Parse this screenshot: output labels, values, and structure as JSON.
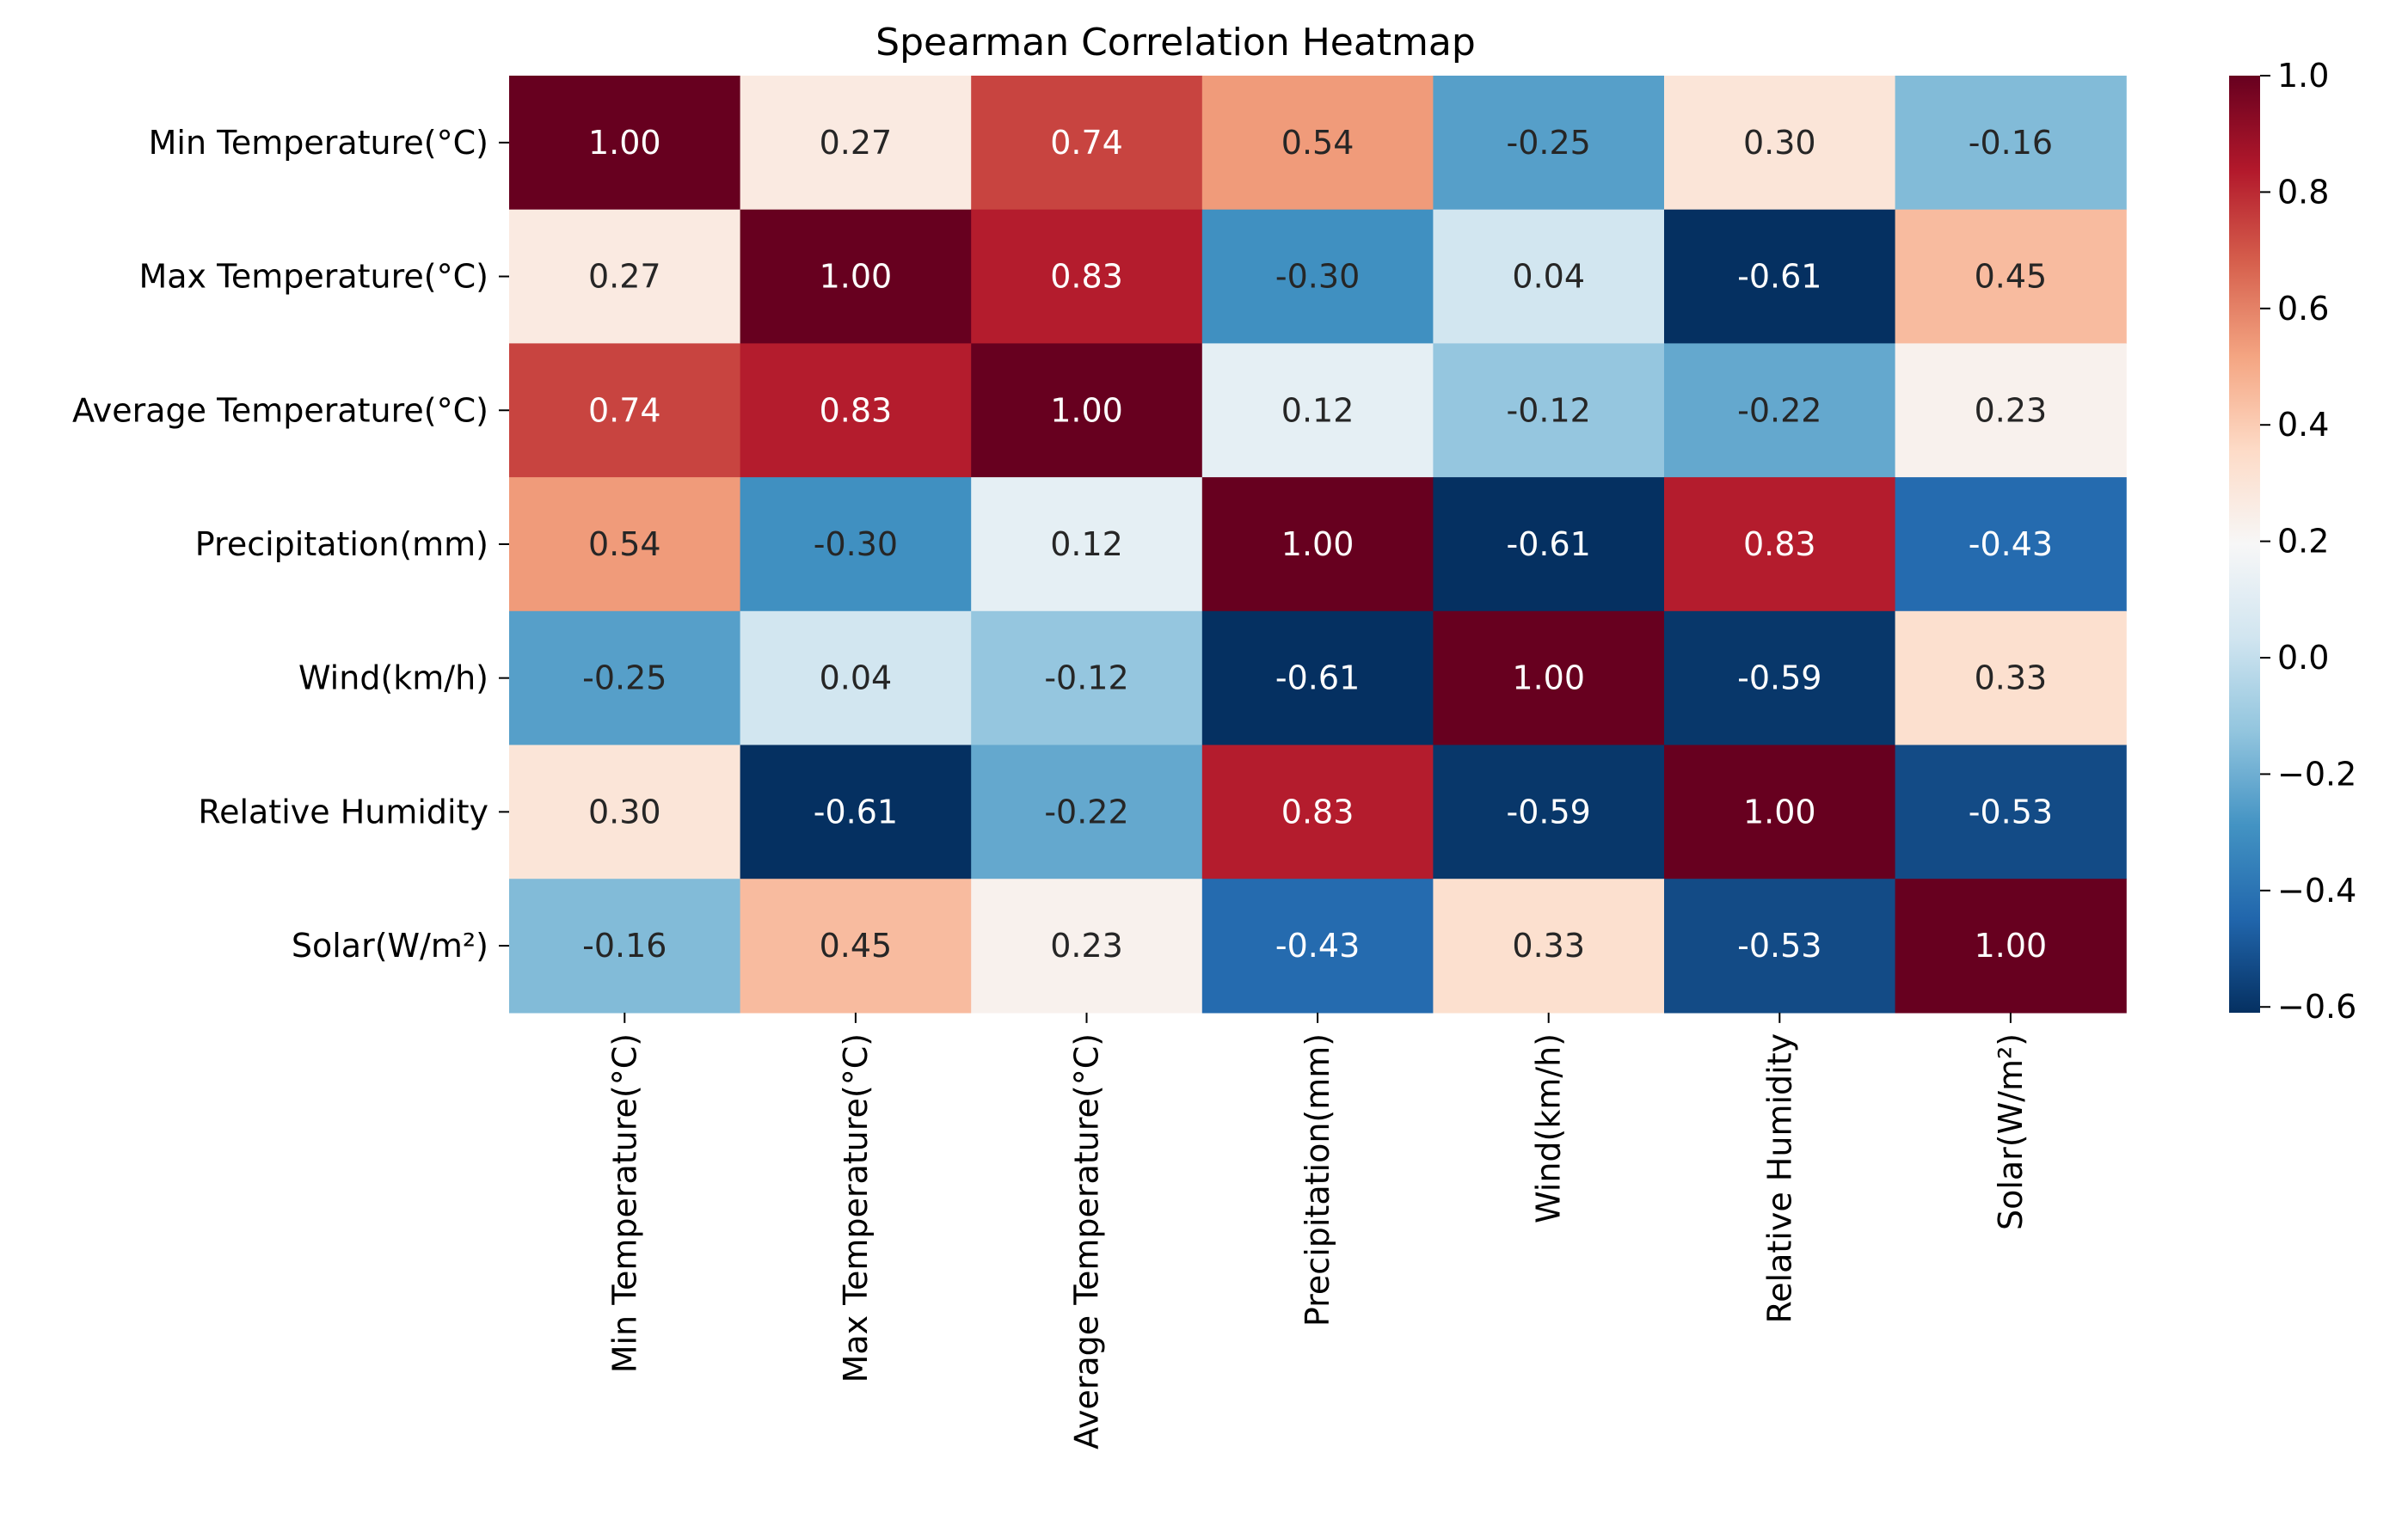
{
  "chart_data": {
    "type": "heatmap",
    "title": "Spearman Correlation Heatmap",
    "rows": [
      "Min Temperature(°C)",
      "Max Temperature(°C)",
      "Average Temperature(°C)",
      "Precipitation(mm)",
      "Wind(km/h)",
      "Relative Humidity",
      "Solar(W/m²)"
    ],
    "columns": [
      "Min Temperature(°C)",
      "Max Temperature(°C)",
      "Average Temperature(°C)",
      "Precipitation(mm)",
      "Wind(km/h)",
      "Relative Humidity",
      "Solar(W/m²)"
    ],
    "values": [
      [
        1.0,
        0.27,
        0.74,
        0.54,
        -0.25,
        0.3,
        -0.16
      ],
      [
        0.27,
        1.0,
        0.83,
        -0.3,
        0.04,
        -0.61,
        0.45
      ],
      [
        0.74,
        0.83,
        1.0,
        0.12,
        -0.12,
        -0.22,
        0.23
      ],
      [
        0.54,
        -0.3,
        0.12,
        1.0,
        -0.61,
        0.83,
        -0.43
      ],
      [
        -0.25,
        0.04,
        -0.12,
        -0.61,
        1.0,
        -0.59,
        0.33
      ],
      [
        0.3,
        -0.61,
        -0.22,
        0.83,
        -0.59,
        1.0,
        -0.53
      ],
      [
        -0.16,
        0.45,
        0.23,
        -0.43,
        0.33,
        -0.53,
        1.0
      ]
    ],
    "cell_labels": [
      [
        "1.00",
        "0.27",
        "0.74",
        "0.54",
        "-0.25",
        "0.30",
        "-0.16"
      ],
      [
        "0.27",
        "1.00",
        "0.83",
        "-0.30",
        "0.04",
        "-0.61",
        "0.45"
      ],
      [
        "0.74",
        "0.83",
        "1.00",
        "0.12",
        "-0.12",
        "-0.22",
        "0.23"
      ],
      [
        "0.54",
        "-0.30",
        "0.12",
        "1.00",
        "-0.61",
        "0.83",
        "-0.43"
      ],
      [
        "-0.25",
        "0.04",
        "-0.12",
        "-0.61",
        "1.00",
        "-0.59",
        "0.33"
      ],
      [
        "0.30",
        "-0.61",
        "-0.22",
        "0.83",
        "-0.59",
        "1.00",
        "-0.53"
      ],
      [
        "-0.16",
        "0.45",
        "0.23",
        "-0.43",
        "0.33",
        "-0.53",
        "1.00"
      ]
    ],
    "colorscale": "RdBu_r",
    "vmin": -0.61,
    "vmax": 1.0,
    "colorbar": {
      "ticks": [
        1.0,
        0.8,
        0.6,
        0.4,
        0.2,
        0.0,
        -0.2,
        -0.4,
        -0.6
      ],
      "tick_labels": [
        "1.0",
        "0.8",
        "0.6",
        "0.4",
        "0.2",
        "0.0",
        "−0.2",
        "−0.4",
        "−0.6"
      ]
    },
    "xlabel": "",
    "ylabel": "",
    "grid": false,
    "legend": "colorbar-right"
  }
}
